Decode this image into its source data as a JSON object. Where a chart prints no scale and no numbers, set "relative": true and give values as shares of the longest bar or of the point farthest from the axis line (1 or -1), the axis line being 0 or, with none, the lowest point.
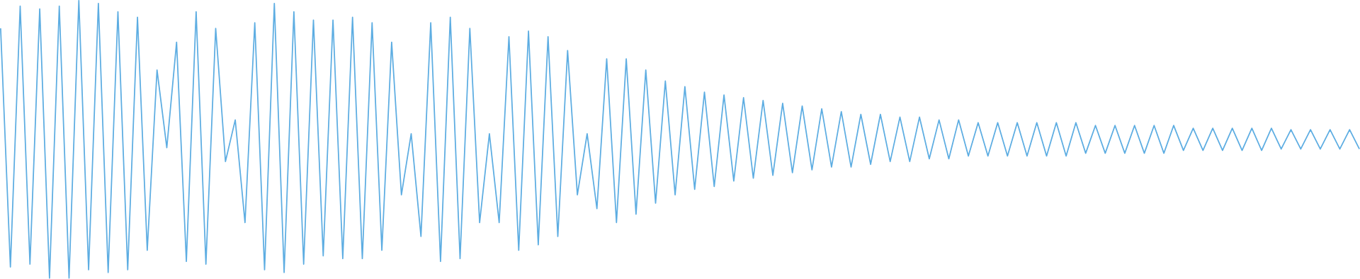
{
  "chart_data": {
    "type": "line",
    "relative": true,
    "color": "#5dade2",
    "categories": [
      null,
      null,
      null,
      null,
      null,
      null,
      null,
      null,
      null,
      null,
      null,
      null,
      null,
      null,
      null,
      null,
      null,
      null,
      null,
      null,
      null,
      null,
      null,
      null,
      null,
      null,
      null,
      null,
      null,
      null,
      null,
      null,
      null,
      null,
      null,
      null,
      null,
      null,
      null,
      null,
      null,
      null,
      null,
      null,
      null,
      null,
      null,
      null,
      null,
      null,
      null,
      null,
      null,
      null,
      null,
      null,
      null,
      null,
      null,
      null,
      null,
      null,
      null,
      null,
      null,
      null,
      null,
      null,
      null,
      null,
      null,
      null,
      null,
      null,
      null,
      null,
      null,
      null,
      null,
      null,
      null,
      null,
      null,
      null,
      null,
      null,
      null,
      null,
      null,
      null,
      null,
      null,
      null,
      null,
      null,
      null,
      null,
      null,
      null,
      null,
      null,
      null,
      null,
      null,
      null,
      null,
      null,
      null,
      null,
      null,
      null,
      null,
      null,
      null,
      null,
      null,
      null,
      null,
      null,
      null,
      null,
      null,
      null,
      null,
      null,
      null,
      null,
      null,
      null,
      null,
      null,
      null,
      null,
      null,
      null,
      null,
      null,
      null,
      null,
      null
    ],
    "values": [
      0.9,
      0.04,
      0.98,
      0.05,
      0.97,
      0.0,
      0.98,
      0.0,
      1.0,
      0.03,
      0.99,
      0.02,
      0.96,
      0.03,
      0.94,
      0.1,
      0.75,
      0.47,
      0.85,
      0.06,
      0.96,
      0.05,
      0.9,
      0.42,
      0.57,
      0.2,
      0.92,
      0.03,
      0.99,
      0.02,
      0.96,
      0.05,
      0.93,
      0.08,
      0.93,
      0.07,
      0.94,
      0.07,
      0.92,
      0.1,
      0.85,
      0.3,
      0.52,
      0.15,
      0.92,
      0.06,
      0.94,
      0.07,
      0.9,
      0.2,
      0.52,
      0.2,
      0.87,
      0.1,
      0.89,
      0.12,
      0.87,
      0.15,
      0.82,
      0.3,
      0.52,
      0.25,
      0.79,
      0.2,
      0.79,
      0.23,
      0.75,
      0.27,
      0.71,
      0.3,
      0.69,
      0.32,
      0.67,
      0.33,
      0.66,
      0.35,
      0.65,
      0.36,
      0.64,
      0.37,
      0.63,
      0.38,
      0.62,
      0.39,
      0.61,
      0.4,
      0.6,
      0.4,
      0.59,
      0.41,
      0.59,
      0.42,
      0.58,
      0.42,
      0.58,
      0.43,
      0.57,
      0.43,
      0.57,
      0.44,
      0.56,
      0.44,
      0.56,
      0.44,
      0.56,
      0.44,
      0.56,
      0.44,
      0.56,
      0.44,
      0.56,
      0.45,
      0.55,
      0.45,
      0.55,
      0.45,
      0.55,
      0.45,
      0.55,
      0.45,
      0.55,
      0.46,
      0.54,
      0.46,
      0.54,
      0.46,
      0.54,
      0.46,
      0.54,
      0.46,
      0.54,
      0.465,
      0.535,
      0.465,
      0.535,
      0.465,
      0.535,
      0.465,
      0.535,
      0.465
    ]
  }
}
